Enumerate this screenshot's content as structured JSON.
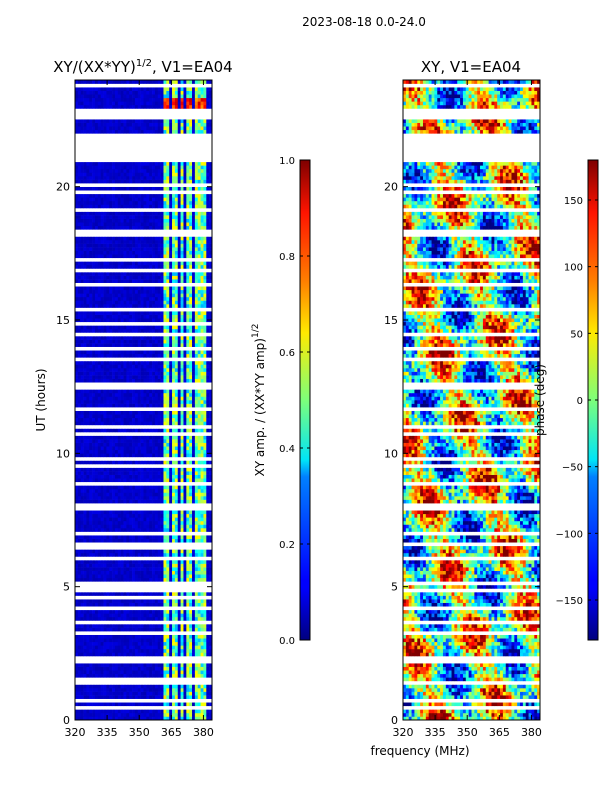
{
  "figure_title": "2023-08-18 0.0-24.0",
  "xlabel": "frequency (MHz)",
  "colors": {
    "nodata": "#ffffff",
    "frame": "#000000"
  },
  "chart_data": [
    {
      "type": "heatmap",
      "name": "amplitude-ratio",
      "title": "XY/(XX*YY)^{1/2}, V1=EA04",
      "title_main": "XY/(XX*YY)",
      "title_sup": "1/2",
      "title_tail": ", V1=EA04",
      "xlabel": "",
      "ylabel": "UT (hours)",
      "xlim": [
        320,
        384
      ],
      "ylim": [
        0,
        24
      ],
      "xticks": [
        320,
        335,
        350,
        365,
        380
      ],
      "yticks": [
        0,
        5,
        10,
        15,
        20
      ],
      "colorbar": {
        "label_main": "XY amp. / (XX*YY amp)",
        "label_sup": "1/2",
        "range": [
          0.0,
          1.0
        ],
        "ticks": [
          "0.0",
          "0.2",
          "0.4",
          "0.6",
          "0.8",
          "1.0"
        ],
        "colormap": "jet"
      },
      "gaps_ut": [
        [
          0.65,
          0.78
        ],
        [
          1.32,
          1.55
        ],
        [
          2.62,
          2.72
        ],
        [
          4.52,
          4.62
        ],
        [
          4.82,
          5.25
        ],
        [
          6.42,
          6.55
        ],
        [
          14.82,
          14.95
        ],
        [
          21.12,
          21.95
        ],
        [
          22.48,
          22.62
        ]
      ],
      "active_bands_mhz": [
        [
          361,
          364
        ],
        [
          365,
          367.5
        ],
        [
          369,
          371
        ],
        [
          372.5,
          375
        ],
        [
          375.5,
          377.5
        ],
        [
          378,
          380
        ],
        [
          380.5,
          382
        ]
      ],
      "background_level": 0.05,
      "band_level_range": [
        0.3,
        0.65
      ],
      "peak_level_range": [
        0.7,
        0.95
      ],
      "peak_ut_range": [
        22.6,
        23.3
      ]
    },
    {
      "type": "heatmap",
      "name": "xy-phase",
      "title": "XY, V1=EA04",
      "xlabel": "",
      "ylabel": "",
      "xlim": [
        320,
        384
      ],
      "ylim": [
        0,
        24
      ],
      "xticks": [
        320,
        335,
        350,
        365,
        380
      ],
      "yticks": [
        0,
        5,
        10,
        15,
        20
      ],
      "colorbar": {
        "label": "phase (deg)",
        "range": [
          -180,
          180
        ],
        "ticks": [
          "−150",
          "−100",
          "−50",
          "0",
          "50",
          "100",
          "150"
        ],
        "tick_values": [
          -150,
          -100,
          -50,
          0,
          50,
          100,
          150
        ],
        "colormap": "jet"
      },
      "gaps_ut": [
        [
          0.65,
          0.78
        ],
        [
          2.62,
          2.72
        ],
        [
          4.82,
          4.92
        ],
        [
          21.12,
          21.95
        ],
        [
          22.48,
          22.62
        ]
      ],
      "value_range_deg": [
        -180,
        180
      ]
    }
  ]
}
